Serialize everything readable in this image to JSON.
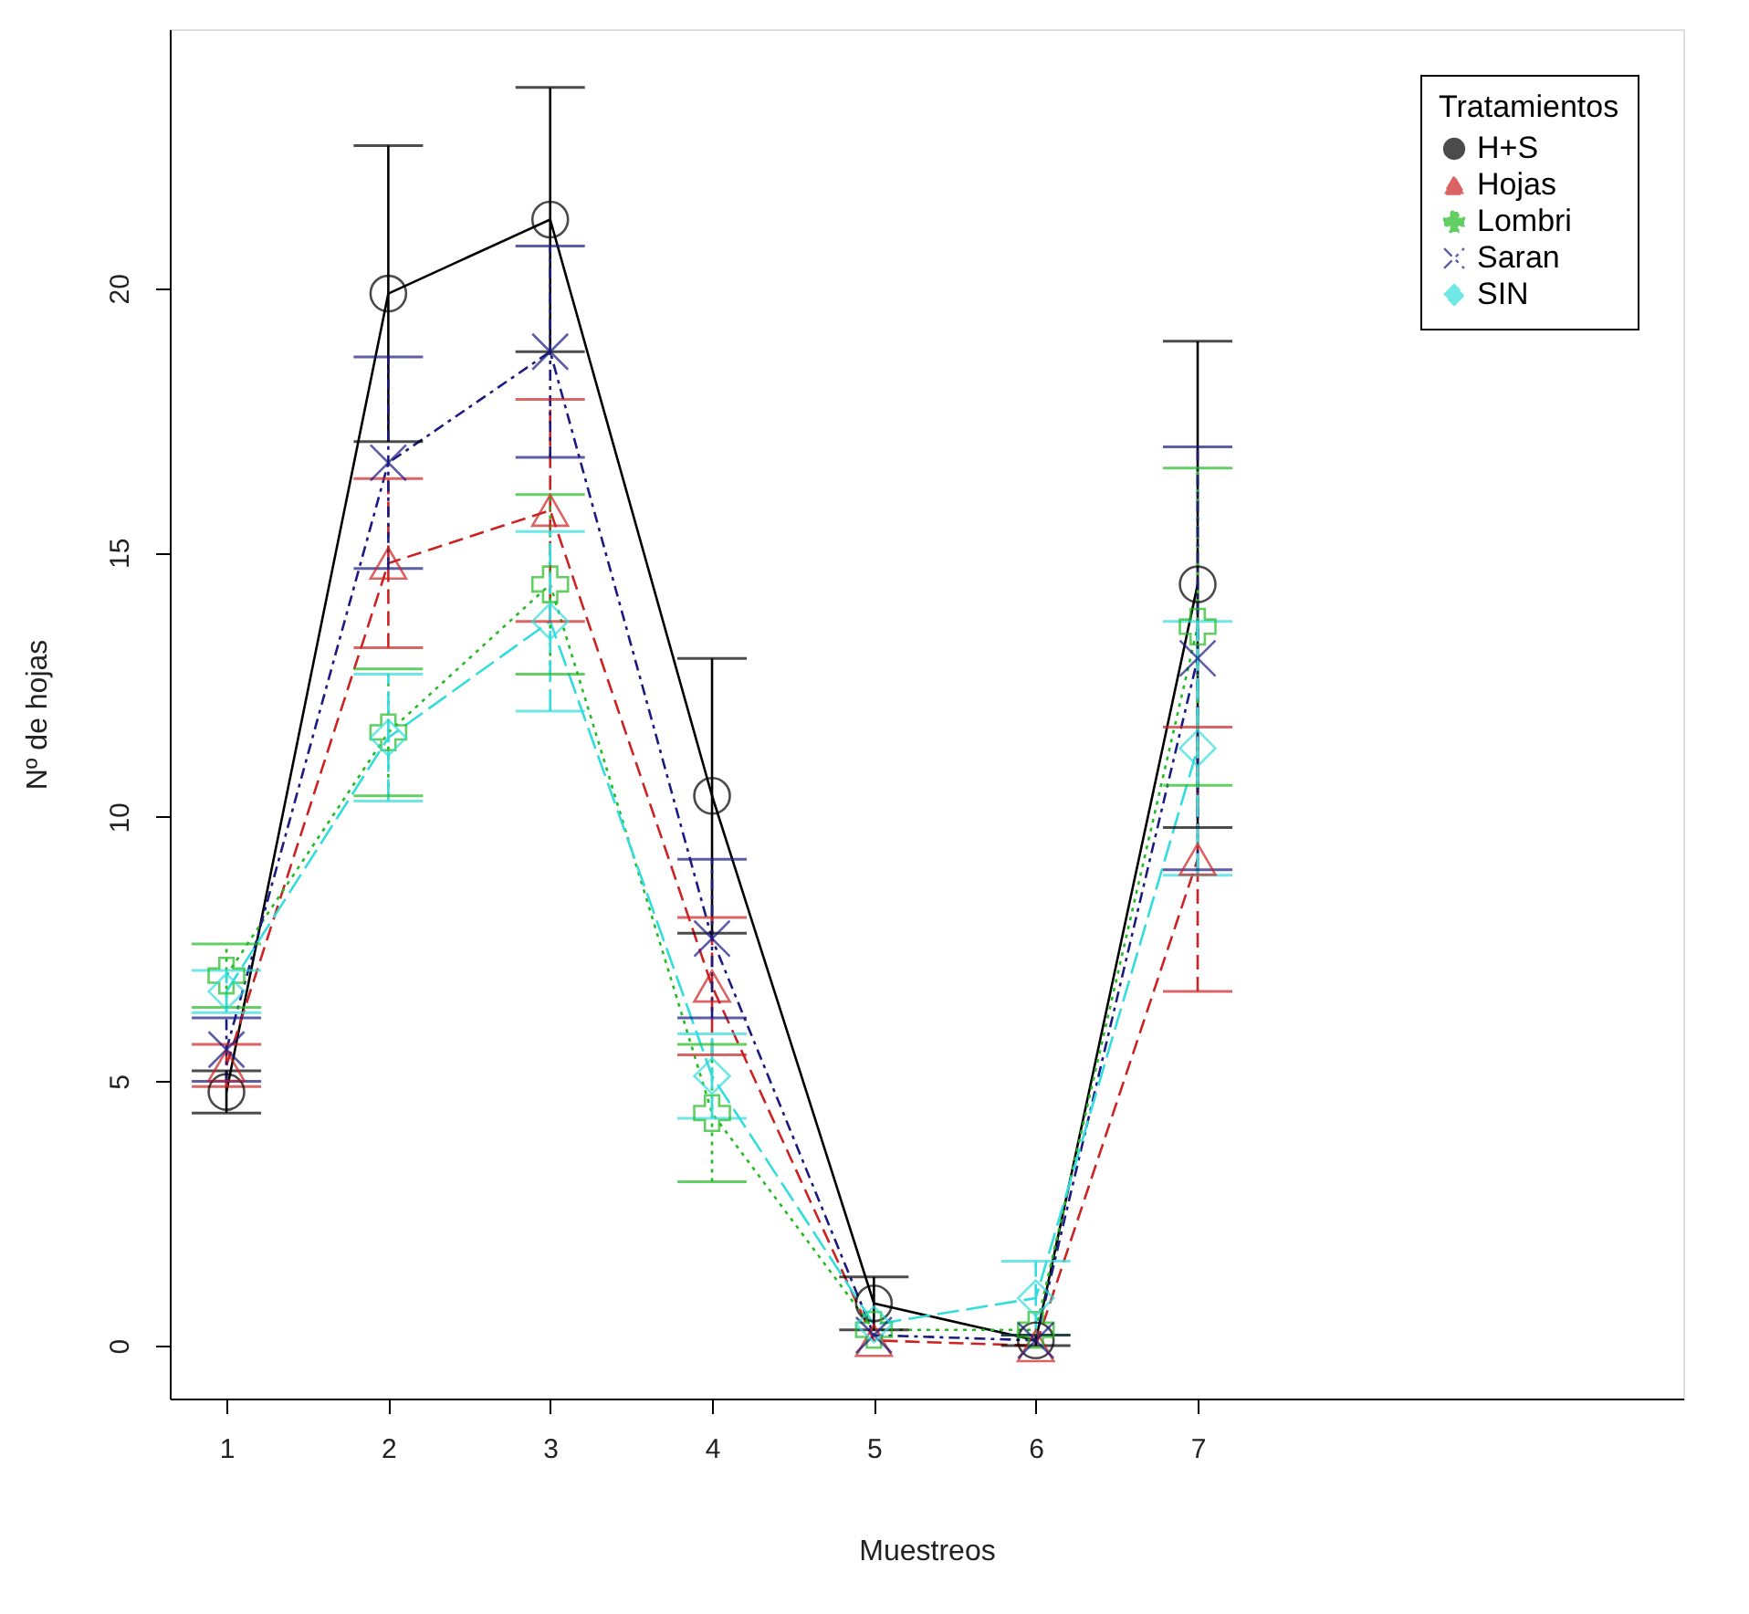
{
  "chart_data": {
    "type": "line",
    "xlabel": "Muestreos",
    "ylabel": "Nº de hojas",
    "legend_title": "Tratamientos",
    "legend": "top right",
    "grid": false,
    "x": [
      1,
      2,
      3,
      4,
      5,
      6,
      7
    ],
    "xlim": [
      0.65,
      10.0
    ],
    "xticks": [
      1,
      2,
      3,
      4,
      5,
      6,
      7
    ],
    "ylim": [
      -1.0,
      24.9
    ],
    "yticks": [
      0,
      5,
      10,
      15,
      20
    ],
    "series": [
      {
        "name": "H+S",
        "color": "#000000",
        "marker": "circle",
        "line_style": "solid",
        "values": [
          4.8,
          19.9,
          21.3,
          10.4,
          0.8,
          0.1,
          14.4
        ],
        "errors": [
          0.4,
          2.8,
          2.5,
          2.6,
          0.5,
          0.1,
          4.6
        ]
      },
      {
        "name": "Hojas",
        "color": "#cc2222",
        "marker": "triangle",
        "line_style": "dashed",
        "values": [
          5.3,
          14.8,
          15.8,
          6.8,
          0.1,
          0.0,
          9.2
        ],
        "errors": [
          0.4,
          1.6,
          2.1,
          1.3,
          null,
          null,
          2.5
        ]
      },
      {
        "name": "Lombri",
        "color": "#22bb22",
        "marker": "cross",
        "line_style": "dotted",
        "values": [
          7.0,
          11.6,
          14.4,
          4.4,
          0.3,
          0.3,
          13.6
        ],
        "errors": [
          0.6,
          1.2,
          1.7,
          1.3,
          null,
          null,
          3.0
        ]
      },
      {
        "name": "Saran",
        "color": "#1a1a80",
        "marker": "x",
        "line_style": "dashdot",
        "values": [
          5.6,
          16.7,
          18.8,
          7.7,
          0.2,
          0.1,
          13.0
        ],
        "errors": [
          0.6,
          2.0,
          2.0,
          1.5,
          null,
          null,
          4.0
        ]
      },
      {
        "name": "SIN",
        "color": "#33dddd",
        "marker": "diamond",
        "line_style": "longdash",
        "values": [
          6.7,
          11.5,
          13.7,
          5.1,
          0.4,
          0.9,
          11.3
        ],
        "errors": [
          0.4,
          1.2,
          1.7,
          0.8,
          null,
          0.7,
          2.4
        ]
      }
    ]
  }
}
